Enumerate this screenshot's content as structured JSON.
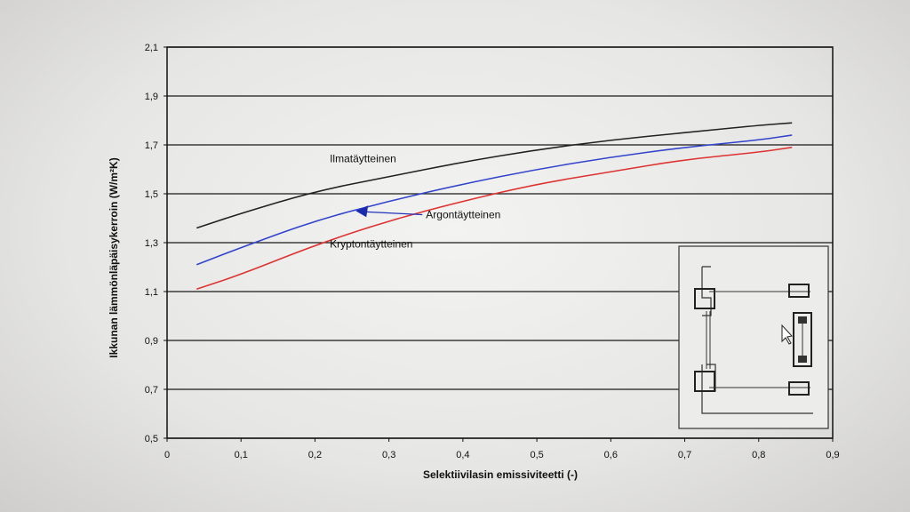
{
  "chart_data": {
    "type": "line",
    "xlabel": "Selektiivilasin emissiviteetti (-)",
    "ylabel": "Ikkunan lämmönläpäisykerroin (W/m²K)",
    "xlim": [
      0,
      0.9
    ],
    "ylim": [
      0.5,
      2.1
    ],
    "x_ticks": [
      "0",
      "0,1",
      "0,2",
      "0,3",
      "0,4",
      "0,5",
      "0,6",
      "0,7",
      "0,8",
      "0,9"
    ],
    "y_ticks": [
      "0,5",
      "0,7",
      "0,9",
      "1,1",
      "1,3",
      "1,5",
      "1,7",
      "1,9",
      "2,1"
    ],
    "grid": "horizontal",
    "series": [
      {
        "name": "Ilmatäytteinen",
        "color": "#222222",
        "x": [
          0.04,
          0.1,
          0.2,
          0.3,
          0.4,
          0.5,
          0.6,
          0.7,
          0.8,
          0.845
        ],
        "y": [
          1.36,
          1.42,
          1.51,
          1.57,
          1.63,
          1.68,
          1.72,
          1.75,
          1.78,
          1.79
        ]
      },
      {
        "name": "Argontäytteinen",
        "color": "#3344cc",
        "x": [
          0.04,
          0.1,
          0.2,
          0.3,
          0.4,
          0.5,
          0.6,
          0.7,
          0.8,
          0.845
        ],
        "y": [
          1.21,
          1.28,
          1.39,
          1.47,
          1.54,
          1.6,
          1.65,
          1.69,
          1.72,
          1.74
        ]
      },
      {
        "name": "Kryptontäytteinen",
        "color": "#dd3333",
        "x": [
          0.04,
          0.1,
          0.2,
          0.3,
          0.4,
          0.5,
          0.6,
          0.7,
          0.8,
          0.845
        ],
        "y": [
          1.11,
          1.17,
          1.29,
          1.39,
          1.47,
          1.54,
          1.59,
          1.64,
          1.67,
          1.69
        ]
      }
    ],
    "annotations": [
      {
        "text": "Ilmatäytteinen",
        "x": 0.22,
        "y": 1.63
      },
      {
        "text": "Argontäytteinen",
        "x": 0.35,
        "y": 1.4,
        "arrow_to_x": 0.255,
        "arrow_to_y": 1.43
      },
      {
        "text": "Kryptontäytteinen",
        "x": 0.22,
        "y": 1.28
      }
    ]
  }
}
